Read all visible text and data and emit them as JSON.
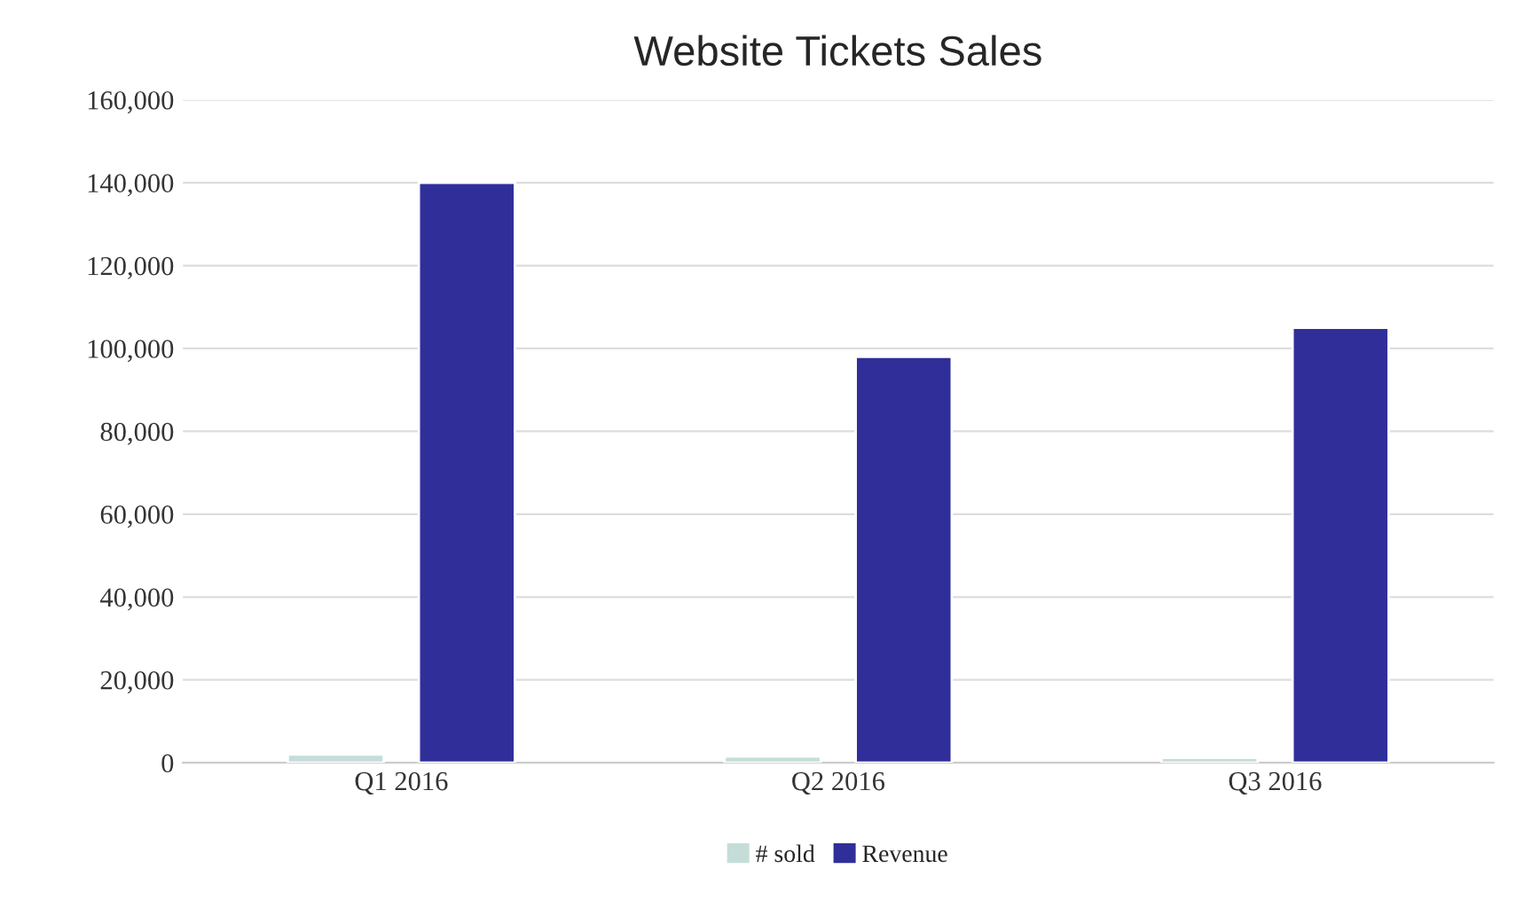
{
  "chart_data": {
    "type": "bar",
    "title": "Website Tickets Sales",
    "categories": [
      "Q1 2016",
      "Q2 2016",
      "Q3 2016"
    ],
    "series": [
      {
        "name": "# sold",
        "color": "#c5ddd8",
        "values": [
          2000,
          1500,
          1200
        ]
      },
      {
        "name": "Revenue",
        "color": "#302f9a",
        "values": [
          140000,
          98000,
          105000
        ]
      }
    ],
    "ylim": [
      0,
      160000
    ],
    "yticks": [
      {
        "value": 0,
        "label": "0"
      },
      {
        "value": 20000,
        "label": "20,000"
      },
      {
        "value": 40000,
        "label": "40,000"
      },
      {
        "value": 60000,
        "label": "60,000"
      },
      {
        "value": 80000,
        "label": "80,000"
      },
      {
        "value": 100000,
        "label": "100,000"
      },
      {
        "value": 120000,
        "label": "120,000"
      },
      {
        "value": 140000,
        "label": "140,000"
      },
      {
        "value": 160000,
        "label": "160,000"
      }
    ],
    "grid": "y",
    "legend": "bottom"
  }
}
